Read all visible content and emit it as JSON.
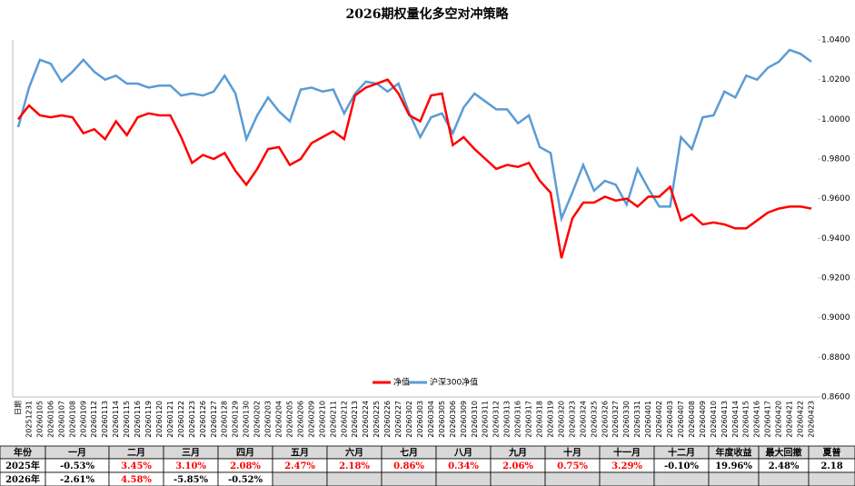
{
  "chart_data": {
    "type": "line",
    "title": "2026期权量化多空对冲策略",
    "categories": [
      "日期",
      "20251231",
      "20260105",
      "20260106",
      "20260107",
      "20260108",
      "20260109",
      "20260112",
      "20260113",
      "20260114",
      "20260115",
      "20260116",
      "20260119",
      "20260120",
      "20260121",
      "20260122",
      "20260123",
      "20260126",
      "20260127",
      "20260128",
      "20260129",
      "20260130",
      "20260202",
      "20260203",
      "20260204",
      "20260205",
      "20260206",
      "20260209",
      "20260210",
      "20260211",
      "20260212",
      "20260213",
      "20260224",
      "20260225",
      "20260226",
      "20260227",
      "20260302",
      "20260303",
      "20260304",
      "20260305",
      "20260306",
      "20260309",
      "20260310",
      "20260311",
      "20260312",
      "20260313",
      "20260316",
      "20260317",
      "20260318",
      "20260319",
      "20260320",
      "20260323",
      "20260324",
      "20260325",
      "20260326",
      "20260327",
      "20260330",
      "20260331",
      "20260401",
      "20260402",
      "20260403",
      "20260407",
      "20260408",
      "20260409",
      "20260410",
      "20260413",
      "20260414",
      "20260415",
      "20260416",
      "20260417",
      "20260420",
      "20260421",
      "20260422",
      "20260423"
    ],
    "series": [
      {
        "name": "净值",
        "color": "#ff0000",
        "values": [
          1.0,
          1.007,
          1.002,
          1.001,
          1.002,
          1.001,
          0.993,
          0.995,
          0.99,
          0.999,
          0.992,
          1.001,
          1.003,
          1.002,
          1.002,
          0.991,
          0.978,
          0.982,
          0.98,
          0.983,
          0.974,
          0.967,
          0.975,
          0.985,
          0.986,
          0.977,
          0.98,
          0.988,
          0.991,
          0.994,
          0.99,
          1.012,
          1.016,
          1.018,
          1.02,
          1.013,
          1.002,
          0.999,
          1.012,
          1.013,
          0.987,
          0.991,
          0.985,
          0.98,
          0.975,
          0.977,
          0.976,
          0.978,
          0.969,
          0.963,
          0.93,
          0.95,
          0.958,
          0.958,
          0.961,
          0.959,
          0.96,
          0.956,
          0.961,
          0.961,
          0.966,
          0.949,
          0.952,
          0.947,
          0.948,
          0.947,
          0.945,
          0.945,
          0.949,
          0.953,
          0.955,
          0.956,
          0.956,
          0.955
        ]
      },
      {
        "name": "沪深300净值",
        "color": "#5b9bd5",
        "values": [
          0.996,
          1.016,
          1.03,
          1.028,
          1.019,
          1.024,
          1.03,
          1.024,
          1.02,
          1.022,
          1.018,
          1.018,
          1.016,
          1.017,
          1.017,
          1.012,
          1.013,
          1.012,
          1.014,
          1.022,
          1.013,
          0.99,
          1.002,
          1.011,
          1.004,
          0.999,
          1.015,
          1.016,
          1.014,
          1.015,
          1.003,
          1.013,
          1.019,
          1.018,
          1.014,
          1.018,
          1.003,
          0.991,
          1.001,
          1.003,
          0.993,
          1.006,
          1.013,
          1.009,
          1.005,
          1.005,
          0.998,
          1.002,
          0.986,
          0.983,
          0.95,
          0.963,
          0.977,
          0.964,
          0.969,
          0.967,
          0.957,
          0.975,
          0.965,
          0.956,
          0.956,
          0.991,
          0.985,
          1.001,
          1.002,
          1.014,
          1.011,
          1.022,
          1.02,
          1.026,
          1.029,
          1.035,
          1.033,
          1.029
        ]
      }
    ],
    "ylim": [
      0.86,
      1.04
    ],
    "yticks": [
      {
        "value": 0.86,
        "label": "0.8600"
      },
      {
        "value": 0.88,
        "label": "0.8800"
      },
      {
        "value": 0.9,
        "label": "0.9000"
      },
      {
        "value": 0.92,
        "label": "0.9200"
      },
      {
        "value": 0.94,
        "label": "0.9400"
      },
      {
        "value": 0.96,
        "label": "0.9600"
      },
      {
        "value": 0.98,
        "label": "0.9800"
      },
      {
        "value": 1.0,
        "label": "1.0000"
      },
      {
        "value": 1.02,
        "label": "1.0200"
      },
      {
        "value": 1.04,
        "label": "1.0400"
      }
    ],
    "grid": false,
    "legend": "bottom"
  },
  "table": {
    "header": [
      "年份",
      "一月",
      "二月",
      "三月",
      "四月",
      "五月",
      "六月",
      "七月",
      "八月",
      "九月",
      "十月",
      "十一月",
      "十二月",
      "年度收益",
      "最大回撤",
      "夏普"
    ],
    "rows": [
      [
        "2025年",
        "-0.53%",
        "3.45%",
        "3.10%",
        "2.08%",
        "2.47%",
        "2.18%",
        "0.86%",
        "0.34%",
        "2.06%",
        "0.75%",
        "3.29%",
        "-0.10%",
        "19.96%",
        "2.48%",
        "2.18"
      ],
      [
        "2026年",
        "-2.61%",
        "4.58%",
        "-5.85%",
        "-0.52%"
      ]
    ]
  }
}
